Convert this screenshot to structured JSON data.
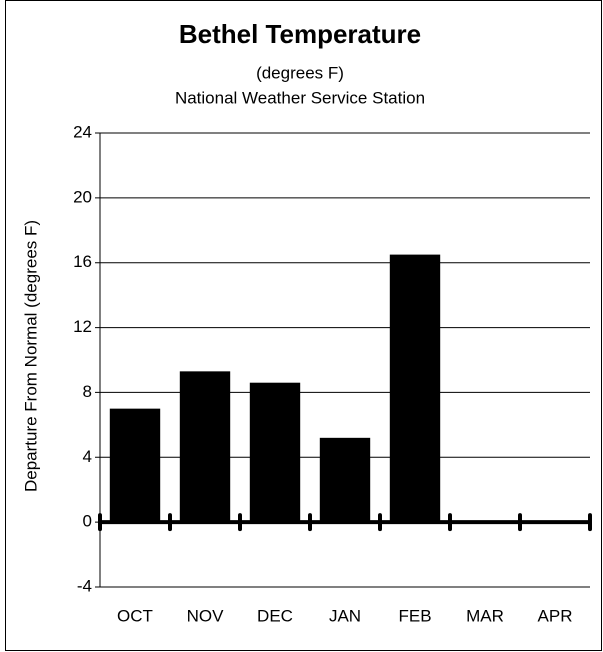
{
  "chart_data": {
    "type": "bar",
    "title": "Bethel Temperature",
    "subtitle": [
      "(degrees F)",
      "National Weather Service Station"
    ],
    "y_label": "Departure From Normal (degrees F)",
    "categories": [
      "OCT",
      "NOV",
      "DEC",
      "JAN",
      "FEB",
      "MAR",
      "APR"
    ],
    "values": [
      7.0,
      9.3,
      8.6,
      5.2,
      16.5,
      null,
      null
    ],
    "color": "#000000",
    "ylim": [
      -4,
      24
    ],
    "yticks": [
      -4,
      0,
      4,
      8,
      12,
      16,
      20,
      24
    ],
    "grid": true
  }
}
